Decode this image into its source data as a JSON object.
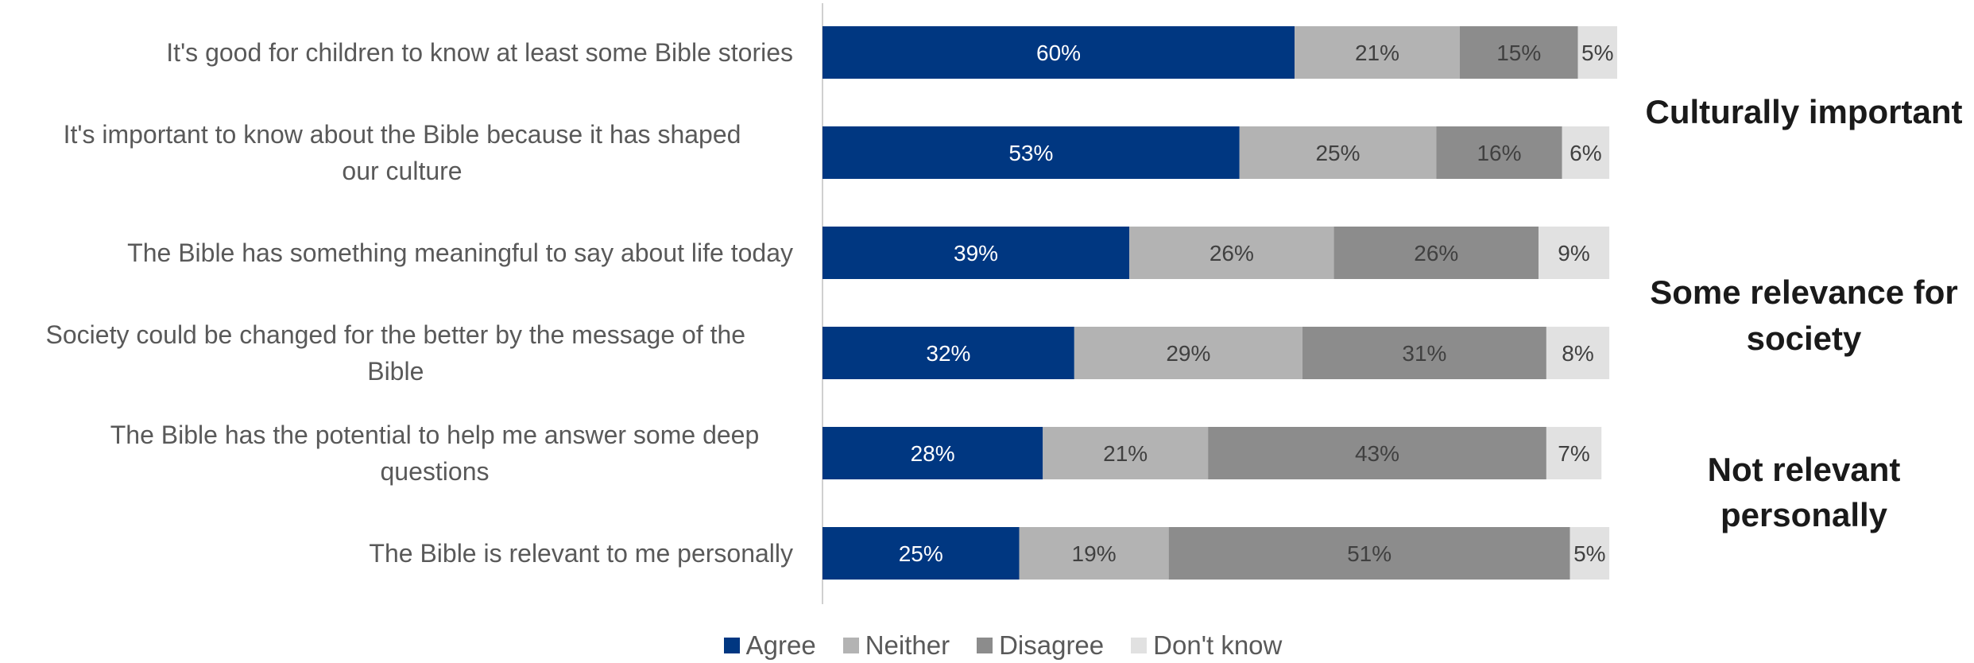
{
  "colors": {
    "Agree": "#003781",
    "Neither": "#b3b3b3",
    "Disagree": "#8c8c8c",
    "Don't know": "#e1e1e1"
  },
  "chart_data": {
    "type": "bar",
    "orientation": "horizontal",
    "stacked": true,
    "categories": [
      "It's good for children to know at least some Bible stories",
      "It's important to know about the Bible because it has shaped our culture",
      "The Bible has something meaningful to say about life today",
      "Society could be changed for the better by the message of the Bible",
      "The Bible has the potential to help me answer some deep questions",
      "The Bible is relevant to me personally"
    ],
    "series": [
      {
        "name": "Agree",
        "values": [
          60,
          53,
          39,
          32,
          28,
          25
        ]
      },
      {
        "name": "Neither",
        "values": [
          21,
          25,
          26,
          29,
          21,
          19
        ]
      },
      {
        "name": "Disagree",
        "values": [
          15,
          16,
          26,
          31,
          43,
          51
        ]
      },
      {
        "name": "Don't know",
        "values": [
          5,
          6,
          9,
          8,
          7,
          5
        ]
      }
    ],
    "data_label_suffix": "%",
    "group_annotations": [
      "Culturally important",
      "Some relevance for society",
      "Not relevant personally"
    ],
    "legend": {
      "position": "bottom",
      "entries": [
        "Agree",
        "Neither",
        "Disagree",
        "Don't know"
      ]
    },
    "xlim": [
      0,
      101
    ],
    "grid": false
  }
}
